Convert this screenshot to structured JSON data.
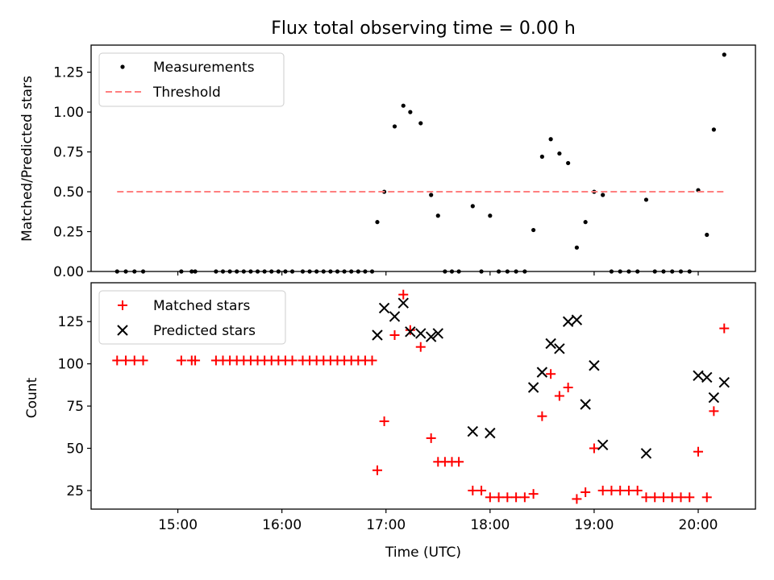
{
  "chart_data": [
    {
      "type": "scatter",
      "title": "Flux total observing time = 0.00 h",
      "xlabel": "",
      "ylabel": "Matched/Predicted stars",
      "xlim": [
        "14:10",
        "20:33"
      ],
      "ylim": [
        0,
        1.42
      ],
      "yticks": [
        0.0,
        0.25,
        0.5,
        0.75,
        1.0,
        1.25
      ],
      "ytick_labels": [
        "0.00",
        "0.25",
        "0.50",
        "0.75",
        "1.00",
        "1.25"
      ],
      "legend": "top-left",
      "series": [
        {
          "name": "Measurements",
          "marker": "dot",
          "color": "#000000",
          "points": [
            [
              "14:25",
              0
            ],
            [
              "14:30",
              0
            ],
            [
              "14:35",
              0
            ],
            [
              "14:40",
              0
            ],
            [
              "15:02",
              0
            ],
            [
              "15:08",
              0
            ],
            [
              "15:10",
              0
            ],
            [
              "15:22",
              0
            ],
            [
              "15:26",
              0
            ],
            [
              "15:30",
              0
            ],
            [
              "15:34",
              0
            ],
            [
              "15:38",
              0
            ],
            [
              "15:42",
              0
            ],
            [
              "15:46",
              0
            ],
            [
              "15:50",
              0
            ],
            [
              "15:54",
              0
            ],
            [
              "15:58",
              0
            ],
            [
              "16:02",
              0
            ],
            [
              "16:06",
              0
            ],
            [
              "16:12",
              0
            ],
            [
              "16:16",
              0
            ],
            [
              "16:20",
              0
            ],
            [
              "16:24",
              0
            ],
            [
              "16:28",
              0
            ],
            [
              "16:32",
              0
            ],
            [
              "16:36",
              0
            ],
            [
              "16:40",
              0
            ],
            [
              "16:44",
              0
            ],
            [
              "16:48",
              0
            ],
            [
              "16:52",
              0
            ],
            [
              "16:55",
              0.31
            ],
            [
              "16:59",
              0.5
            ],
            [
              "17:05",
              0.91
            ],
            [
              "17:10",
              1.04
            ],
            [
              "17:14",
              1.0
            ],
            [
              "17:20",
              0.93
            ],
            [
              "17:26",
              0.48
            ],
            [
              "17:30",
              0.35
            ],
            [
              "17:34",
              0
            ],
            [
              "17:38",
              0
            ],
            [
              "17:42",
              0
            ],
            [
              "17:50",
              0.41
            ],
            [
              "17:55",
              0
            ],
            [
              "18:00",
              0.35
            ],
            [
              "18:05",
              0
            ],
            [
              "18:10",
              0
            ],
            [
              "18:15",
              0
            ],
            [
              "18:20",
              0
            ],
            [
              "18:25",
              0.26
            ],
            [
              "18:30",
              0.72
            ],
            [
              "18:35",
              0.83
            ],
            [
              "18:40",
              0.74
            ],
            [
              "18:45",
              0.68
            ],
            [
              "18:50",
              0.15
            ],
            [
              "18:55",
              0.31
            ],
            [
              "19:00",
              0.5
            ],
            [
              "19:05",
              0.48
            ],
            [
              "19:10",
              0
            ],
            [
              "19:15",
              0
            ],
            [
              "19:20",
              0
            ],
            [
              "19:25",
              0
            ],
            [
              "19:30",
              0.45
            ],
            [
              "19:35",
              0
            ],
            [
              "19:40",
              0
            ],
            [
              "19:45",
              0
            ],
            [
              "19:50",
              0
            ],
            [
              "19:55",
              0
            ],
            [
              "20:00",
              0.51
            ],
            [
              "20:05",
              0.23
            ],
            [
              "20:09",
              0.89
            ],
            [
              "20:15",
              1.36
            ]
          ]
        },
        {
          "name": "Threshold",
          "type": "line",
          "style": "dashed",
          "color": "#ff7f7f",
          "points": [
            [
              "14:25",
              0.5
            ],
            [
              "20:15",
              0.5
            ]
          ]
        }
      ]
    },
    {
      "type": "scatter",
      "title": "",
      "xlabel": "Time (UTC)",
      "ylabel": "Count",
      "xlim": [
        "14:10",
        "20:33"
      ],
      "ylim": [
        14,
        148
      ],
      "yticks": [
        25,
        50,
        75,
        100,
        125
      ],
      "ytick_labels": [
        "25",
        "50",
        "75",
        "100",
        "125"
      ],
      "xticks": [
        "15:00",
        "16:00",
        "17:00",
        "18:00",
        "19:00",
        "20:00"
      ],
      "xtick_labels": [
        "15:00",
        "16:00",
        "17:00",
        "18:00",
        "19:00",
        "20:00"
      ],
      "legend": "top-left",
      "series": [
        {
          "name": "Matched stars",
          "marker": "plus",
          "color": "#ff0000",
          "points": [
            [
              "14:25",
              102
            ],
            [
              "14:30",
              102
            ],
            [
              "14:35",
              102
            ],
            [
              "14:40",
              102
            ],
            [
              "15:02",
              102
            ],
            [
              "15:08",
              102
            ],
            [
              "15:10",
              102
            ],
            [
              "15:22",
              102
            ],
            [
              "15:26",
              102
            ],
            [
              "15:30",
              102
            ],
            [
              "15:34",
              102
            ],
            [
              "15:38",
              102
            ],
            [
              "15:42",
              102
            ],
            [
              "15:46",
              102
            ],
            [
              "15:50",
              102
            ],
            [
              "15:54",
              102
            ],
            [
              "15:58",
              102
            ],
            [
              "16:02",
              102
            ],
            [
              "16:06",
              102
            ],
            [
              "16:12",
              102
            ],
            [
              "16:16",
              102
            ],
            [
              "16:20",
              102
            ],
            [
              "16:24",
              102
            ],
            [
              "16:28",
              102
            ],
            [
              "16:32",
              102
            ],
            [
              "16:36",
              102
            ],
            [
              "16:40",
              102
            ],
            [
              "16:44",
              102
            ],
            [
              "16:48",
              102
            ],
            [
              "16:52",
              102
            ],
            [
              "16:55",
              37
            ],
            [
              "16:59",
              66
            ],
            [
              "17:05",
              117
            ],
            [
              "17:10",
              141
            ],
            [
              "17:14",
              120
            ],
            [
              "17:20",
              110
            ],
            [
              "17:26",
              56
            ],
            [
              "17:30",
              42
            ],
            [
              "17:34",
              42
            ],
            [
              "17:38",
              42
            ],
            [
              "17:42",
              42
            ],
            [
              "17:50",
              25
            ],
            [
              "17:55",
              25
            ],
            [
              "18:00",
              21
            ],
            [
              "18:05",
              21
            ],
            [
              "18:10",
              21
            ],
            [
              "18:15",
              21
            ],
            [
              "18:20",
              21
            ],
            [
              "18:25",
              23
            ],
            [
              "18:30",
              69
            ],
            [
              "18:35",
              94
            ],
            [
              "18:40",
              81
            ],
            [
              "18:45",
              86
            ],
            [
              "18:50",
              20
            ],
            [
              "18:55",
              24
            ],
            [
              "19:00",
              50
            ],
            [
              "19:05",
              25
            ],
            [
              "19:10",
              25
            ],
            [
              "19:15",
              25
            ],
            [
              "19:20",
              25
            ],
            [
              "19:25",
              25
            ],
            [
              "19:30",
              21
            ],
            [
              "19:35",
              21
            ],
            [
              "19:40",
              21
            ],
            [
              "19:45",
              21
            ],
            [
              "19:50",
              21
            ],
            [
              "19:55",
              21
            ],
            [
              "20:00",
              48
            ],
            [
              "20:05",
              21
            ],
            [
              "20:09",
              72
            ],
            [
              "20:15",
              121
            ]
          ]
        },
        {
          "name": "Predicted stars",
          "marker": "x",
          "color": "#000000",
          "points": [
            [
              "16:55",
              117
            ],
            [
              "16:59",
              133
            ],
            [
              "17:05",
              128
            ],
            [
              "17:10",
              136
            ],
            [
              "17:14",
              119
            ],
            [
              "17:20",
              118
            ],
            [
              "17:26",
              116
            ],
            [
              "17:30",
              118
            ],
            [
              "17:50",
              60
            ],
            [
              "18:00",
              59
            ],
            [
              "18:25",
              86
            ],
            [
              "18:30",
              95
            ],
            [
              "18:35",
              112
            ],
            [
              "18:40",
              109
            ],
            [
              "18:45",
              125
            ],
            [
              "18:50",
              126
            ],
            [
              "18:55",
              76
            ],
            [
              "19:00",
              99
            ],
            [
              "19:05",
              52
            ],
            [
              "19:30",
              47
            ],
            [
              "20:00",
              93
            ],
            [
              "20:05",
              92
            ],
            [
              "20:09",
              80
            ],
            [
              "20:15",
              89
            ]
          ]
        }
      ]
    }
  ]
}
